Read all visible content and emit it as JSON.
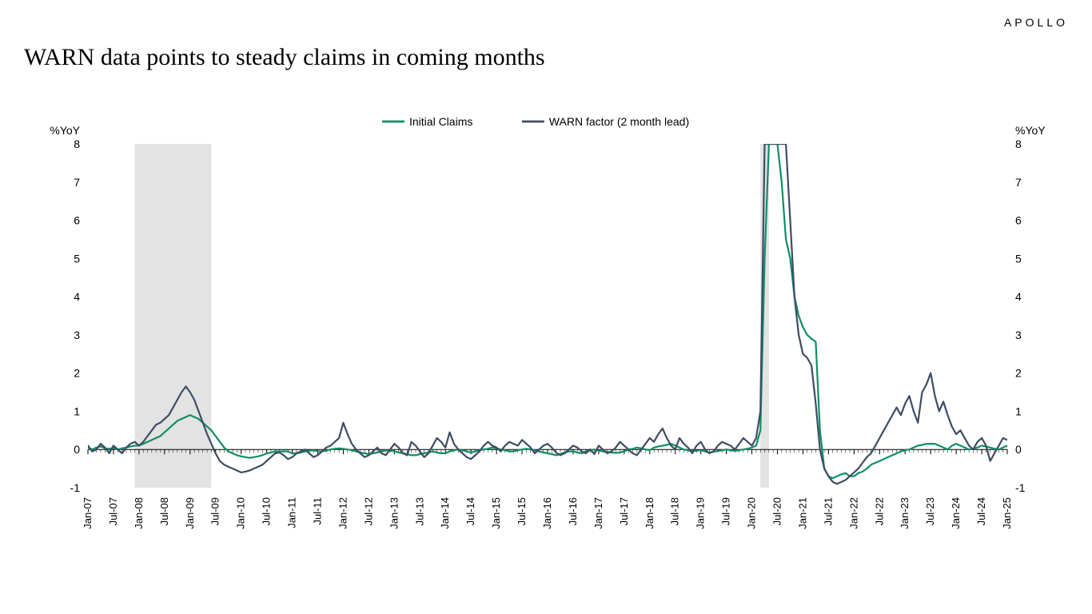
{
  "brand": "APOLLO",
  "title": "WARN data points to steady claims in coming months",
  "chart": {
    "type": "line",
    "background_color": "#ffffff",
    "title_fontsize": 30,
    "axis_fontsize": 14,
    "y_axis_label_left": "%YoY",
    "y_axis_label_right": "%YoY",
    "ylim": [
      -1,
      8
    ],
    "ytick_step": 1,
    "yticks": [
      -1,
      0,
      1,
      2,
      3,
      4,
      5,
      6,
      7,
      8
    ],
    "x_categories": [
      "Jan-07",
      "Jul-07",
      "Jan-08",
      "Jul-08",
      "Jan-09",
      "Jul-09",
      "Jan-10",
      "Jul-10",
      "Jan-11",
      "Jul-11",
      "Jan-12",
      "Jul-12",
      "Jan-13",
      "Jul-13",
      "Jan-14",
      "Jul-14",
      "Jan-15",
      "Jul-15",
      "Jan-16",
      "Jul-16",
      "Jan-17",
      "Jul-17",
      "Jan-18",
      "Jul-18",
      "Jan-19",
      "Jul-19",
      "Jan-20",
      "Jul-20",
      "Jan-21",
      "Jul-21",
      "Jan-22",
      "Jul-22",
      "Jan-23",
      "Jul-23",
      "Jan-24",
      "Jul-24",
      "Jan-25"
    ],
    "n_points": 217,
    "zero_line_color": "#000000",
    "tick_color": "#000000",
    "recession_fill": "#e3e3e3",
    "recessions": [
      {
        "start_idx": 11,
        "end_idx": 29
      },
      {
        "start_idx": 158,
        "end_idx": 160
      }
    ],
    "legend": {
      "position": "top-center",
      "items": [
        {
          "label": "Initial Claims",
          "color": "#0f8f64",
          "line_width": 2.2
        },
        {
          "label": "WARN factor (2 month lead)",
          "color": "#3d4d63",
          "line_width": 2.2
        }
      ]
    },
    "series": [
      {
        "name": "Initial Claims",
        "color": "#0f8f64",
        "line_width": 2.2,
        "values": [
          0.05,
          0.0,
          0.05,
          0.08,
          0.03,
          0.02,
          0.04,
          0.0,
          0.03,
          0.05,
          0.08,
          0.1,
          0.1,
          0.15,
          0.2,
          0.25,
          0.3,
          0.35,
          0.45,
          0.55,
          0.65,
          0.75,
          0.8,
          0.85,
          0.9,
          0.85,
          0.8,
          0.7,
          0.6,
          0.5,
          0.35,
          0.2,
          0.05,
          -0.05,
          -0.1,
          -0.15,
          -0.18,
          -0.2,
          -0.22,
          -0.2,
          -0.18,
          -0.15,
          -0.1,
          -0.08,
          -0.05,
          -0.05,
          -0.05,
          -0.05,
          -0.1,
          -0.1,
          -0.08,
          -0.05,
          -0.03,
          -0.02,
          -0.05,
          -0.05,
          -0.03,
          0.0,
          0.02,
          0.03,
          0.02,
          0.0,
          -0.02,
          -0.05,
          -0.08,
          -0.1,
          -0.12,
          -0.1,
          -0.08,
          -0.05,
          -0.02,
          -0.03,
          -0.05,
          -0.08,
          -0.1,
          -0.12,
          -0.15,
          -0.15,
          -0.12,
          -0.1,
          -0.08,
          -0.05,
          -0.08,
          -0.1,
          -0.1,
          -0.05,
          -0.02,
          0.0,
          -0.02,
          -0.05,
          -0.08,
          -0.05,
          -0.02,
          0.0,
          0.02,
          0.05,
          0.03,
          0.0,
          -0.02,
          -0.05,
          -0.05,
          -0.02,
          0.0,
          0.02,
          0.0,
          -0.02,
          -0.05,
          -0.08,
          -0.1,
          -0.12,
          -0.15,
          -0.12,
          -0.08,
          -0.05,
          -0.05,
          -0.08,
          -0.1,
          -0.05,
          -0.02,
          0.0,
          -0.03,
          -0.05,
          -0.06,
          -0.08,
          -0.09,
          -0.08,
          -0.05,
          0.0,
          0.02,
          0.05,
          0.03,
          0.0,
          -0.02,
          0.05,
          0.08,
          0.1,
          0.12,
          0.15,
          0.1,
          0.05,
          0.0,
          -0.02,
          -0.05,
          -0.03,
          -0.02,
          -0.05,
          -0.08,
          -0.06,
          -0.04,
          -0.02,
          0.0,
          -0.02,
          -0.04,
          -0.02,
          0.0,
          0.02,
          0.05,
          0.1,
          0.5,
          5.0,
          12.0,
          11.0,
          9.0,
          7.0,
          5.5,
          5.0,
          4.0,
          3.5,
          3.2,
          3.0,
          2.9,
          2.82,
          0.5,
          -0.5,
          -0.7,
          -0.75,
          -0.7,
          -0.65,
          -0.62,
          -0.7,
          -0.7,
          -0.62,
          -0.58,
          -0.5,
          -0.4,
          -0.35,
          -0.3,
          -0.25,
          -0.2,
          -0.15,
          -0.1,
          -0.05,
          -0.02,
          0.0,
          0.05,
          0.1,
          0.12,
          0.15,
          0.15,
          0.15,
          0.1,
          0.05,
          0.0,
          0.1,
          0.15,
          0.1,
          0.05,
          0.0,
          0.02,
          0.05,
          0.1,
          0.08,
          0.05,
          0.02,
          0.0,
          0.05,
          0.1
        ]
      },
      {
        "name": "WARN factor (2 month lead)",
        "color": "#3d4d63",
        "line_width": 2.2,
        "values": [
          0.1,
          -0.05,
          0.0,
          0.15,
          0.05,
          -0.1,
          0.1,
          0.0,
          -0.1,
          0.05,
          0.15,
          0.2,
          0.1,
          0.2,
          0.35,
          0.5,
          0.65,
          0.7,
          0.8,
          0.9,
          1.1,
          1.3,
          1.5,
          1.65,
          1.5,
          1.3,
          1.0,
          0.7,
          0.4,
          0.15,
          -0.1,
          -0.3,
          -0.4,
          -0.45,
          -0.5,
          -0.55,
          -0.6,
          -0.58,
          -0.55,
          -0.5,
          -0.45,
          -0.4,
          -0.3,
          -0.2,
          -0.1,
          -0.08,
          -0.15,
          -0.25,
          -0.2,
          -0.1,
          -0.05,
          0.0,
          -0.1,
          -0.2,
          -0.15,
          -0.05,
          0.05,
          0.1,
          0.2,
          0.3,
          0.7,
          0.4,
          0.15,
          0.0,
          -0.1,
          -0.2,
          -0.15,
          -0.05,
          0.05,
          -0.1,
          -0.15,
          0.0,
          0.15,
          0.05,
          -0.1,
          -0.15,
          0.2,
          0.1,
          -0.05,
          -0.2,
          -0.1,
          0.1,
          0.3,
          0.2,
          0.05,
          0.45,
          0.15,
          0.0,
          -0.1,
          -0.2,
          -0.25,
          -0.15,
          -0.05,
          0.1,
          0.2,
          0.1,
          0.05,
          -0.05,
          0.1,
          0.2,
          0.15,
          0.1,
          0.25,
          0.15,
          0.05,
          -0.1,
          0.0,
          0.1,
          0.15,
          0.05,
          -0.08,
          -0.15,
          -0.1,
          0.0,
          0.1,
          0.05,
          -0.05,
          -0.1,
          0.0,
          -0.12,
          0.1,
          0.0,
          -0.1,
          -0.05,
          0.05,
          0.2,
          0.1,
          0.0,
          -0.1,
          -0.15,
          0.0,
          0.15,
          0.3,
          0.2,
          0.4,
          0.55,
          0.3,
          0.1,
          0.0,
          0.3,
          0.15,
          0.05,
          -0.1,
          0.1,
          0.2,
          0.0,
          -0.1,
          -0.05,
          0.1,
          0.2,
          0.15,
          0.1,
          0.0,
          0.15,
          0.3,
          0.2,
          0.1,
          0.3,
          1.0,
          8.0,
          20.0,
          18.0,
          15.0,
          12.0,
          9.0,
          6.0,
          4.0,
          3.0,
          2.5,
          2.4,
          2.2,
          1.2,
          0.0,
          -0.5,
          -0.7,
          -0.85,
          -0.9,
          -0.85,
          -0.8,
          -0.7,
          -0.6,
          -0.5,
          -0.35,
          -0.2,
          -0.1,
          0.1,
          0.3,
          0.5,
          0.7,
          0.9,
          1.1,
          0.9,
          1.2,
          1.4,
          1.0,
          0.7,
          1.5,
          1.7,
          2.0,
          1.4,
          1.0,
          1.25,
          0.9,
          0.6,
          0.4,
          0.5,
          0.3,
          0.1,
          0.0,
          0.2,
          0.3,
          0.1,
          -0.3,
          -0.1,
          0.1,
          0.3,
          0.25
        ]
      }
    ]
  }
}
